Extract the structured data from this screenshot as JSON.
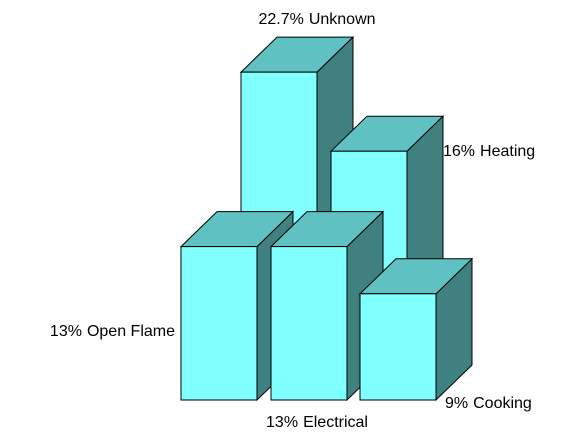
{
  "chart_data": {
    "type": "bar3d",
    "categories": [
      "Unknown",
      "Heating",
      "Open Flame",
      "Electrical",
      "Cooking"
    ],
    "values": [
      22.7,
      16,
      13,
      13,
      9
    ],
    "value_labels": [
      "22.7%",
      "16%",
      "13%",
      "13%",
      "9%"
    ],
    "color": "#80ffff"
  }
}
